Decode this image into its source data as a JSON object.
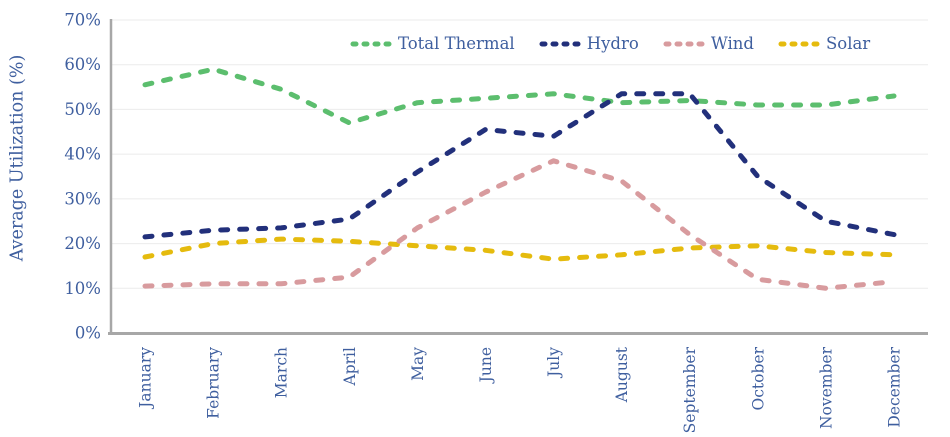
{
  "chart_data": {
    "type": "line",
    "title": "",
    "xlabel": "",
    "ylabel": "Average Utilization (%)",
    "x_categories": [
      "January",
      "February",
      "March",
      "April",
      "May",
      "June",
      "July",
      "August",
      "September",
      "October",
      "November",
      "December"
    ],
    "series": [
      {
        "name": "Total Thermal",
        "color": "#5CBE6E",
        "values": [
          55.5,
          59,
          54.5,
          47,
          51.5,
          52.5,
          53.5,
          51.5,
          52,
          51,
          51,
          53
        ]
      },
      {
        "name": "Hydro",
        "color": "#22307B",
        "values": [
          21.5,
          23,
          23.5,
          25.5,
          36,
          45.5,
          44,
          53.5,
          53.5,
          35,
          25,
          22
        ]
      },
      {
        "name": "Wind",
        "color": "#D89B9E",
        "values": [
          10.5,
          11,
          11,
          12.5,
          23.5,
          31.5,
          38.5,
          34,
          22,
          12,
          10,
          11.5
        ]
      },
      {
        "name": "Solar",
        "color": "#E5BB0E",
        "values": [
          17,
          20,
          21,
          20.5,
          19.5,
          18.5,
          16.5,
          17.5,
          19,
          19.5,
          18,
          17.5
        ]
      }
    ],
    "ylim": [
      0,
      70
    ],
    "ytick_step": 10,
    "ytick_labels": [
      "0%",
      "10%",
      "20%",
      "30%",
      "40%",
      "50%",
      "60%",
      "70%"
    ],
    "grid": true,
    "legend_position": "top",
    "line_style": "dashed",
    "draw_order": [
      0,
      3,
      1,
      2
    ]
  },
  "colors": {
    "text": "#3F5F9F",
    "axis_line": "#A7A7A7",
    "gridline": "#EBEBEB",
    "background": "#FFFFFF"
  }
}
